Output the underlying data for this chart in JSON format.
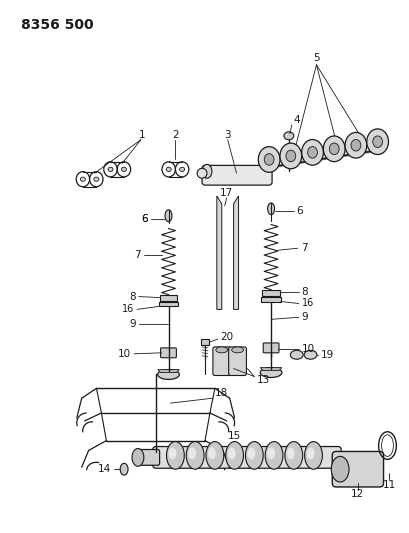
{
  "title": "8356 500",
  "bg_color": "#ffffff",
  "line_color": "#1a1a1a",
  "title_fontsize": 10,
  "label_fontsize": 7.5,
  "fig_width": 4.1,
  "fig_height": 5.33,
  "dpi": 100
}
